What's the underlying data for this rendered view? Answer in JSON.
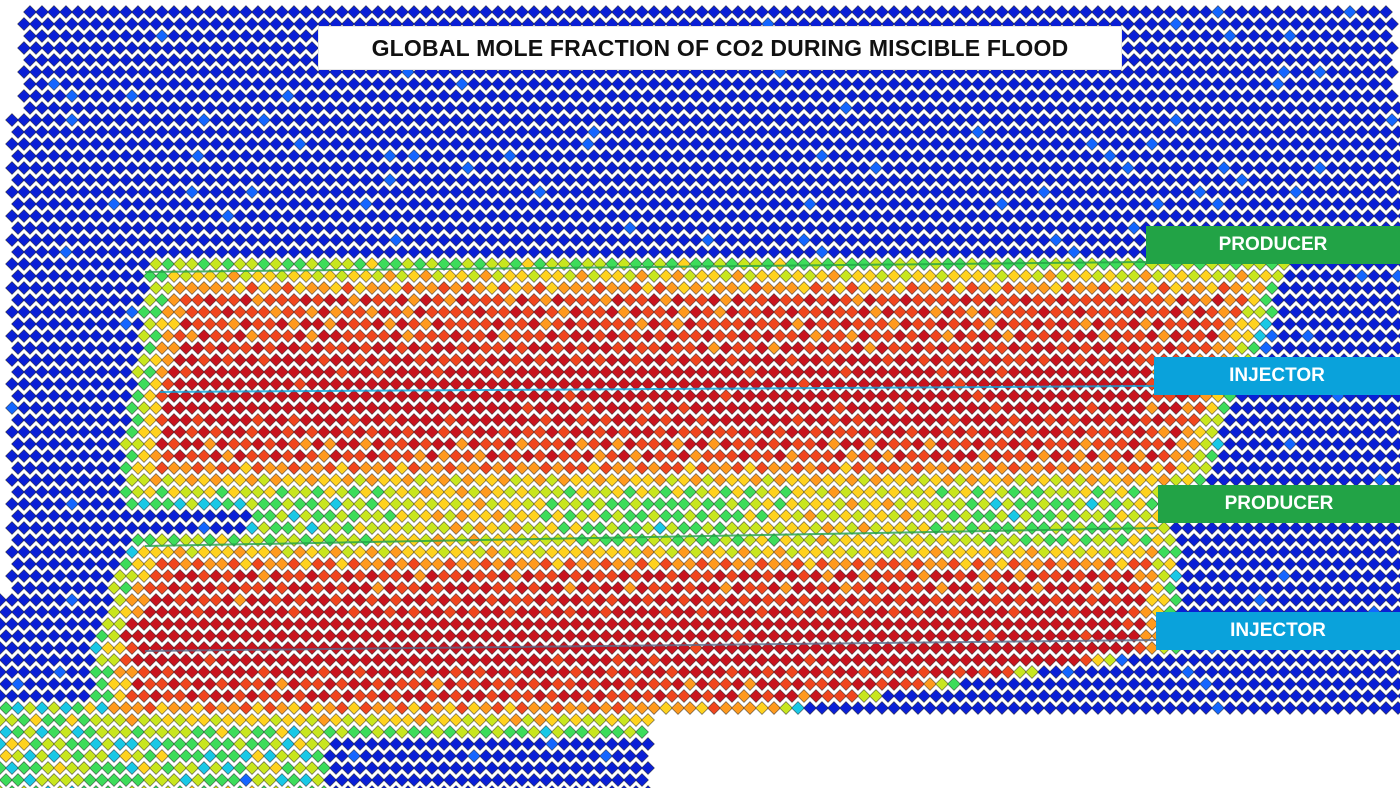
{
  "figure": {
    "title": "GLOBAL MOLE FRACTION OF CO2 DURING MISCIBLE FLOOD",
    "colormap": [
      "#0a1fd6",
      "#1466ff",
      "#19c8e6",
      "#3ddc5a",
      "#c8e61e",
      "#ffd21e",
      "#ff9a1e",
      "#f0461e",
      "#c8141e"
    ],
    "background_color": "#ffffff"
  },
  "wells": [
    {
      "label": "PRODUCER",
      "type": "producer",
      "color": "#22a346"
    },
    {
      "label": "INJECTOR",
      "type": "injector",
      "color": "#0aa2db"
    },
    {
      "label": "PRODUCER",
      "type": "producer",
      "color": "#22a346"
    },
    {
      "label": "INJECTOR",
      "type": "injector",
      "color": "#0aa2db"
    }
  ]
}
